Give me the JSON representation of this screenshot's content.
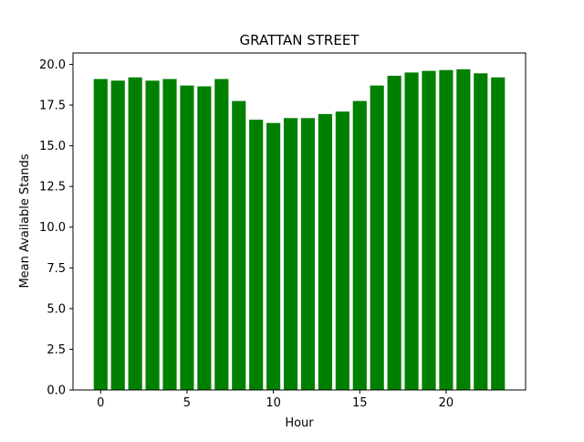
{
  "chart_data": {
    "type": "bar",
    "title": "GRATTAN STREET",
    "xlabel": "Hour",
    "ylabel": "Mean Available Stands",
    "categories": [
      0,
      1,
      2,
      3,
      4,
      5,
      6,
      7,
      8,
      9,
      10,
      11,
      12,
      13,
      14,
      15,
      16,
      17,
      18,
      19,
      20,
      21,
      22,
      23
    ],
    "values": [
      19.1,
      19.0,
      19.2,
      19.0,
      19.1,
      18.7,
      18.65,
      19.1,
      17.75,
      16.6,
      16.4,
      16.7,
      16.7,
      16.95,
      17.1,
      17.75,
      18.7,
      19.3,
      19.5,
      19.6,
      19.65,
      19.7,
      19.45,
      19.2
    ],
    "xlim": [
      -1.6,
      24.6
    ],
    "ylim": [
      0,
      20.7
    ],
    "xticks": [
      0,
      5,
      10,
      15,
      20
    ],
    "xtick_labels": [
      "0",
      "5",
      "10",
      "15",
      "20"
    ],
    "yticks": [
      0,
      2.5,
      5,
      7.5,
      10,
      12.5,
      15,
      17.5,
      20
    ],
    "ytick_labels": [
      "0.0",
      "2.5",
      "5.0",
      "7.5",
      "10.0",
      "12.5",
      "15.0",
      "17.5",
      "20.0"
    ],
    "bar_color": "#008000",
    "grid": false,
    "legend": "none"
  }
}
